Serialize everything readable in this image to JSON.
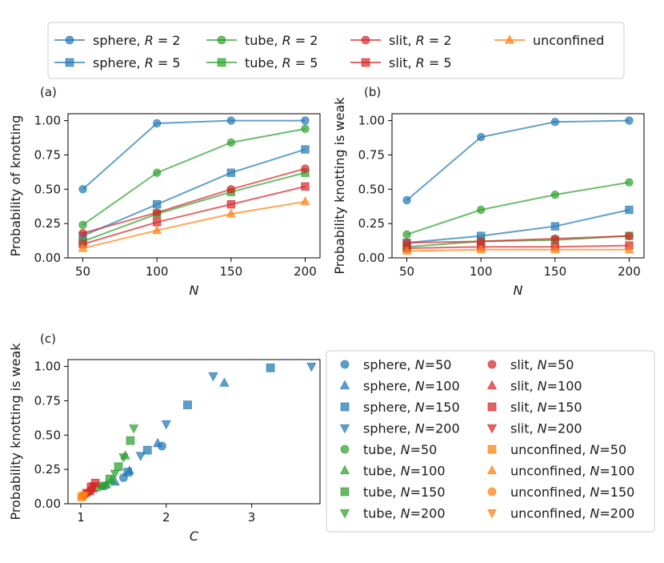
{
  "figure": {
    "top_legend": [
      {
        "label": "sphere, ",
        "r": "R = 2",
        "series": "sphere_R2"
      },
      {
        "label": "sphere, ",
        "r": "R = 5",
        "series": "sphere_R5"
      },
      {
        "label": "tube, ",
        "r": "R = 2",
        "series": "tube_R2"
      },
      {
        "label": "tube, ",
        "r": "R = 5",
        "series": "tube_R5"
      },
      {
        "label": "slit, ",
        "r": "R = 2",
        "series": "slit_R2"
      },
      {
        "label": "slit, ",
        "r": "R = 5",
        "series": "slit_R5"
      },
      {
        "label": "unconfined",
        "r": "",
        "series": "unconfined"
      }
    ],
    "colors": {
      "sphere": "#1f77b4",
      "tube": "#2ca02c",
      "slit": "#d62728",
      "unconfined": "#ff7f0e"
    }
  },
  "chart_data": [
    {
      "panel": "(a)",
      "type": "line",
      "xlabel": "N",
      "ylabel": "Probability of knotting",
      "xlim": [
        40,
        210
      ],
      "ylim": [
        0,
        1.05
      ],
      "xticks": [
        "50",
        "100",
        "150",
        "200"
      ],
      "yticks": [
        "0.00",
        "0.25",
        "0.50",
        "0.75",
        "1.00"
      ],
      "x": [
        50,
        100,
        150,
        200
      ],
      "series": [
        {
          "name": "sphere, R = 2",
          "group": "sphere",
          "marker": "circle",
          "values": [
            0.5,
            0.98,
            1.0,
            1.0
          ]
        },
        {
          "name": "sphere, R = 5",
          "group": "sphere",
          "marker": "square",
          "values": [
            0.16,
            0.39,
            0.62,
            0.79
          ]
        },
        {
          "name": "tube, R = 2",
          "group": "tube",
          "marker": "circle",
          "values": [
            0.24,
            0.62,
            0.84,
            0.94
          ]
        },
        {
          "name": "tube, R = 5",
          "group": "tube",
          "marker": "square",
          "values": [
            0.12,
            0.32,
            0.48,
            0.62
          ]
        },
        {
          "name": "slit, R = 2",
          "group": "slit",
          "marker": "circle",
          "values": [
            0.18,
            0.33,
            0.5,
            0.65
          ]
        },
        {
          "name": "slit, R = 5",
          "group": "slit",
          "marker": "square",
          "values": [
            0.1,
            0.26,
            0.39,
            0.52
          ]
        },
        {
          "name": "unconfined",
          "group": "unconfined",
          "marker": "triangle-up",
          "values": [
            0.07,
            0.2,
            0.32,
            0.41
          ]
        }
      ]
    },
    {
      "panel": "(b)",
      "type": "line",
      "xlabel": "N",
      "ylabel": "Probability knotting is weak",
      "xlim": [
        40,
        210
      ],
      "ylim": [
        0,
        1.05
      ],
      "xticks": [
        "50",
        "100",
        "150",
        "200"
      ],
      "yticks": [
        "0.00",
        "0.25",
        "0.50",
        "0.75",
        "1.00"
      ],
      "x": [
        50,
        100,
        150,
        200
      ],
      "series": [
        {
          "name": "sphere, R = 2",
          "group": "sphere",
          "marker": "circle",
          "values": [
            0.42,
            0.88,
            0.99,
            1.0
          ]
        },
        {
          "name": "sphere, R = 5",
          "group": "sphere",
          "marker": "square",
          "values": [
            0.11,
            0.16,
            0.23,
            0.35
          ]
        },
        {
          "name": "tube, R = 2",
          "group": "tube",
          "marker": "circle",
          "values": [
            0.17,
            0.35,
            0.46,
            0.55
          ]
        },
        {
          "name": "tube, R = 5",
          "group": "tube",
          "marker": "square",
          "values": [
            0.08,
            0.12,
            0.13,
            0.16
          ]
        },
        {
          "name": "slit, R = 2",
          "group": "slit",
          "marker": "circle",
          "values": [
            0.11,
            0.12,
            0.14,
            0.16
          ]
        },
        {
          "name": "slit, R = 5",
          "group": "slit",
          "marker": "square",
          "values": [
            0.07,
            0.08,
            0.08,
            0.09
          ]
        },
        {
          "name": "unconfined",
          "group": "unconfined",
          "marker": "triangle-up",
          "values": [
            0.05,
            0.06,
            0.06,
            0.06
          ]
        }
      ]
    },
    {
      "panel": "(c)",
      "type": "scatter",
      "xlabel": "C",
      "ylabel": "Probability knotting is weak",
      "xlim": [
        0.85,
        3.8
      ],
      "ylim": [
        0,
        1.05
      ],
      "xticks": [
        "1",
        "2",
        "3"
      ],
      "yticks": [
        "0.00",
        "0.25",
        "0.50",
        "0.75",
        "1.00"
      ],
      "legend": [
        {
          "label": "sphere, ",
          "n": "N=50",
          "group": "sphere",
          "marker": "circle"
        },
        {
          "label": "sphere, ",
          "n": "N=100",
          "group": "sphere",
          "marker": "triangle-up"
        },
        {
          "label": "sphere, ",
          "n": "N=150",
          "group": "sphere",
          "marker": "square"
        },
        {
          "label": "sphere, ",
          "n": "N=200",
          "group": "sphere",
          "marker": "triangle-down"
        },
        {
          "label": "tube, ",
          "n": "N=50",
          "group": "tube",
          "marker": "circle"
        },
        {
          "label": "tube, ",
          "n": "N=100",
          "group": "tube",
          "marker": "triangle-up"
        },
        {
          "label": "tube, ",
          "n": "N=150",
          "group": "tube",
          "marker": "square"
        },
        {
          "label": "tube, ",
          "n": "N=200",
          "group": "tube",
          "marker": "triangle-down"
        },
        {
          "label": "slit, ",
          "n": "N=50",
          "group": "slit",
          "marker": "circle"
        },
        {
          "label": "slit, ",
          "n": "N=100",
          "group": "slit",
          "marker": "triangle-up"
        },
        {
          "label": "slit, ",
          "n": "N=150",
          "group": "slit",
          "marker": "square"
        },
        {
          "label": "slit, ",
          "n": "N=200",
          "group": "slit",
          "marker": "triangle-down"
        },
        {
          "label": "unconfined, ",
          "n": "N=50",
          "group": "unconfined",
          "marker": "square"
        },
        {
          "label": "unconfined, ",
          "n": "N=100",
          "group": "unconfined",
          "marker": "triangle-up"
        },
        {
          "label": "unconfined, ",
          "n": "N=150",
          "group": "unconfined",
          "marker": "circle"
        },
        {
          "label": "unconfined, ",
          "n": "N=200",
          "group": "unconfined",
          "marker": "triangle-down"
        }
      ],
      "points": [
        {
          "group": "sphere",
          "marker": "circle",
          "x": 1.95,
          "y": 0.42
        },
        {
          "group": "sphere",
          "marker": "circle",
          "x": 1.5,
          "y": 0.19
        },
        {
          "group": "sphere",
          "marker": "circle",
          "x": 1.28,
          "y": 0.13
        },
        {
          "group": "sphere",
          "marker": "triangle-up",
          "x": 2.68,
          "y": 0.88
        },
        {
          "group": "sphere",
          "marker": "triangle-up",
          "x": 1.9,
          "y": 0.44
        },
        {
          "group": "sphere",
          "marker": "triangle-up",
          "x": 1.57,
          "y": 0.24
        },
        {
          "group": "sphere",
          "marker": "triangle-up",
          "x": 1.4,
          "y": 0.16
        },
        {
          "group": "sphere",
          "marker": "square",
          "x": 3.22,
          "y": 0.99
        },
        {
          "group": "sphere",
          "marker": "square",
          "x": 2.25,
          "y": 0.72
        },
        {
          "group": "sphere",
          "marker": "square",
          "x": 1.78,
          "y": 0.39
        },
        {
          "group": "sphere",
          "marker": "square",
          "x": 1.55,
          "y": 0.23
        },
        {
          "group": "sphere",
          "marker": "triangle-down",
          "x": 3.7,
          "y": 1.0
        },
        {
          "group": "sphere",
          "marker": "triangle-down",
          "x": 2.55,
          "y": 0.93
        },
        {
          "group": "sphere",
          "marker": "triangle-down",
          "x": 2.0,
          "y": 0.58
        },
        {
          "group": "sphere",
          "marker": "triangle-down",
          "x": 1.7,
          "y": 0.35
        },
        {
          "group": "tube",
          "marker": "circle",
          "x": 1.2,
          "y": 0.12
        },
        {
          "group": "tube",
          "marker": "circle",
          "x": 1.25,
          "y": 0.13
        },
        {
          "group": "tube",
          "marker": "triangle-up",
          "x": 1.3,
          "y": 0.14
        },
        {
          "group": "tube",
          "marker": "triangle-up",
          "x": 1.36,
          "y": 0.17
        },
        {
          "group": "tube",
          "marker": "triangle-up",
          "x": 1.52,
          "y": 0.35
        },
        {
          "group": "tube",
          "marker": "square",
          "x": 1.34,
          "y": 0.18
        },
        {
          "group": "tube",
          "marker": "square",
          "x": 1.44,
          "y": 0.27
        },
        {
          "group": "tube",
          "marker": "square",
          "x": 1.58,
          "y": 0.46
        },
        {
          "group": "tube",
          "marker": "triangle-down",
          "x": 1.4,
          "y": 0.22
        },
        {
          "group": "tube",
          "marker": "triangle-down",
          "x": 1.5,
          "y": 0.34
        },
        {
          "group": "tube",
          "marker": "triangle-down",
          "x": 1.62,
          "y": 0.55
        },
        {
          "group": "slit",
          "marker": "circle",
          "x": 1.05,
          "y": 0.07
        },
        {
          "group": "slit",
          "marker": "circle",
          "x": 1.08,
          "y": 0.08
        },
        {
          "group": "slit",
          "marker": "circle",
          "x": 1.12,
          "y": 0.1
        },
        {
          "group": "slit",
          "marker": "triangle-up",
          "x": 1.1,
          "y": 0.09
        },
        {
          "group": "slit",
          "marker": "triangle-up",
          "x": 1.14,
          "y": 0.11
        },
        {
          "group": "slit",
          "marker": "square",
          "x": 1.12,
          "y": 0.12
        },
        {
          "group": "slit",
          "marker": "square",
          "x": 1.17,
          "y": 0.15
        },
        {
          "group": "slit",
          "marker": "triangle-down",
          "x": 1.07,
          "y": 0.08
        },
        {
          "group": "slit",
          "marker": "triangle-down",
          "x": 1.15,
          "y": 0.13
        },
        {
          "group": "unconfined",
          "marker": "square",
          "x": 1.01,
          "y": 0.05
        },
        {
          "group": "unconfined",
          "marker": "triangle-up",
          "x": 1.02,
          "y": 0.06
        },
        {
          "group": "unconfined",
          "marker": "circle",
          "x": 1.03,
          "y": 0.06
        },
        {
          "group": "unconfined",
          "marker": "triangle-down",
          "x": 1.04,
          "y": 0.06
        }
      ]
    }
  ]
}
